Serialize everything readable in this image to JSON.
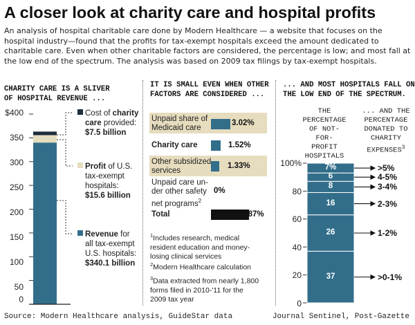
{
  "title": "A closer look at charity care and hospital profits",
  "intro": "An analysis of hospital charitable care done by Modern Healthcare — a website that focuses on the hospital industry—found that the profits for tax-exempt hospitals exceed the amount dedicated to charitable care. Even when other charitable factors are considered, the percentage is low; and most fall at the low end of the spectrum. The analysis was based on 2009 tax filings by tax-exempt hospitals.",
  "colors": {
    "navy": "#1f2d3d",
    "blue": "#326e8a",
    "tan": "#e6dcbe",
    "black": "#111111"
  },
  "panel1": {
    "heading_line1": "CHARITY CARE IS A SLIVER",
    "heading_line2": "OF HOSPITAL REVENUE ...",
    "ticks": [
      "$400",
      "350",
      "300",
      "250",
      "200",
      "150",
      "100",
      "50",
      "0"
    ],
    "legend": [
      {
        "prefix": "Cost of ",
        "bold": "charity",
        "line2_bold": "care",
        "line2": " provided:",
        "value": "$7.5 billion"
      },
      {
        "bold": "Profit",
        "line1": " of U.S.",
        "line2": "tax-exempt",
        "line3": "hospitals:",
        "value": "$15.6 billion"
      },
      {
        "bold": "Revenue",
        "line1": " for",
        "line2": "all tax-exempt",
        "line3": "U.S. hospitals:",
        "value": "$340.1 billion"
      }
    ]
  },
  "panel2": {
    "heading_line1": "IT IS SMALL EVEN WHEN OTHER",
    "heading_line2": "FACTORS ARE CONSIDERED ...",
    "rows": [
      {
        "line1": "Unpaid share of",
        "line2": "Medicaid care",
        "value": "3.02%"
      },
      {
        "line1": "Charity care",
        "line2": "",
        "value": "1.52%"
      },
      {
        "line1": "Other subsidized",
        "line2": "services",
        "value": "1.33%"
      },
      {
        "line1": "Unpaid care un-",
        "line2": "der other safety",
        "line3": "net programs",
        "sup": "2",
        "value": "0%"
      },
      {
        "line1": "Total",
        "line2": "",
        "value": "5.87%"
      }
    ],
    "notes": [
      {
        "sup": "1",
        "lines": [
          "Includes research, medical",
          "resident education and money-",
          "losing clinical services"
        ]
      },
      {
        "sup": "2",
        "lines": [
          "Modern Healthcare calculation"
        ]
      },
      {
        "sup": "3",
        "lines": [
          "Data extracted from nearly 1,800",
          "forms filed in 2010-'11 for the",
          "2009 tax year"
        ]
      }
    ]
  },
  "panel3": {
    "heading_line1": "... AND MOST HOSPITALS FALL ON",
    "heading_line2": "THE LOW END OF THE SPECTRUM.",
    "col1_head": [
      "THE",
      "PERCENTAGE",
      "OF NOT-FOR-",
      "PROFIT",
      "HOSPITALS ..."
    ],
    "col2_head": [
      "... AND THE",
      "PERCENTAGE",
      "DONATED TO",
      "CHARITY",
      "EXPENSES"
    ],
    "col2_sup": "3",
    "ticks": [
      "100%",
      "80",
      "60",
      "40",
      "20",
      "0"
    ]
  },
  "chart_data": [
    {
      "type": "bar",
      "title": "",
      "ylabel": "",
      "ylim": [
        0,
        400
      ],
      "series": [
        {
          "name": "Revenue for all tax-exempt U.S. hospitals",
          "values": [
            340.1
          ]
        },
        {
          "name": "Profit of U.S. tax-exempt hospitals",
          "values": [
            15.6
          ]
        },
        {
          "name": "Cost of charity care provided",
          "values": [
            7.5
          ]
        }
      ],
      "units": "$ billion"
    },
    {
      "type": "bar",
      "categories": [
        "Unpaid share of Medicaid care",
        "Charity care",
        "Other subsidized services",
        "Unpaid care under other safety net programs",
        "Total"
      ],
      "values": [
        3.02,
        1.52,
        1.33,
        0,
        5.87
      ],
      "units": "%"
    },
    {
      "type": "bar",
      "ylim": [
        0,
        100
      ],
      "categories": [
        ">0-1%",
        "1-2%",
        "2-3%",
        "3-4%",
        "4-5%",
        ">5%"
      ],
      "values": [
        37,
        26,
        16,
        8,
        6,
        7
      ],
      "labels": [
        "37",
        "26",
        "16",
        "8",
        "6",
        "7%"
      ],
      "units": "% of hospitals"
    }
  ],
  "footer": {
    "source": "Source: Modern Healthcare analysis, GuideStar data",
    "credit": "Journal Sentinel, Post-Gazette"
  }
}
